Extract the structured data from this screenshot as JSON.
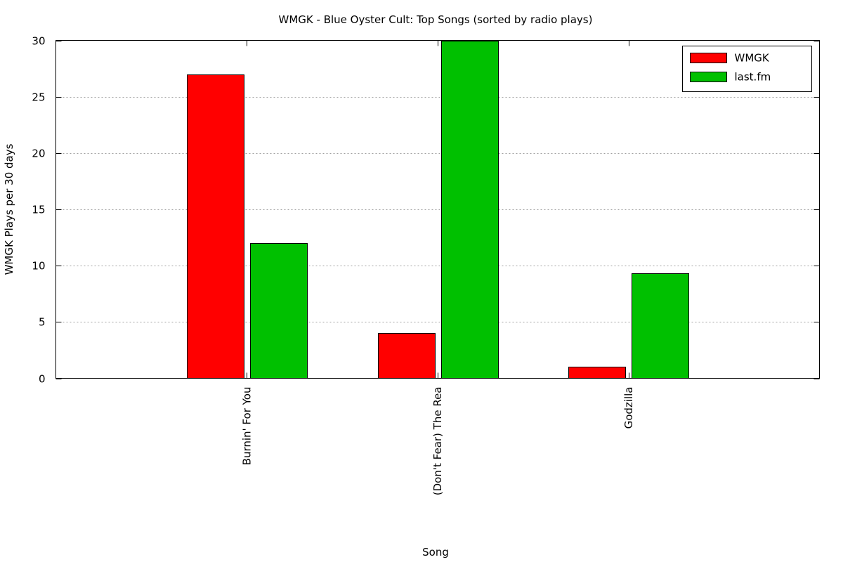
{
  "chart_data": {
    "type": "bar",
    "title": "WMGK - Blue Oyster Cult: Top Songs (sorted by radio plays)",
    "xlabel": "Song",
    "ylabel": "WMGK Plays per 30 days",
    "categories": [
      "Burnin' For You",
      "(Don't Fear) The Rea",
      "Godzilla"
    ],
    "series": [
      {
        "name": "WMGK",
        "color": "#ff0000",
        "values": [
          27,
          4,
          1
        ]
      },
      {
        "name": "last.fm",
        "color": "#00c000",
        "values": [
          12,
          30,
          9.3
        ]
      }
    ],
    "ylim": [
      0,
      30
    ],
    "yticks": [
      0,
      5,
      10,
      15,
      20,
      25,
      30
    ],
    "grid": "horizontal-dotted",
    "legend_position": "top-right",
    "xlim": [
      -1,
      3
    ]
  }
}
